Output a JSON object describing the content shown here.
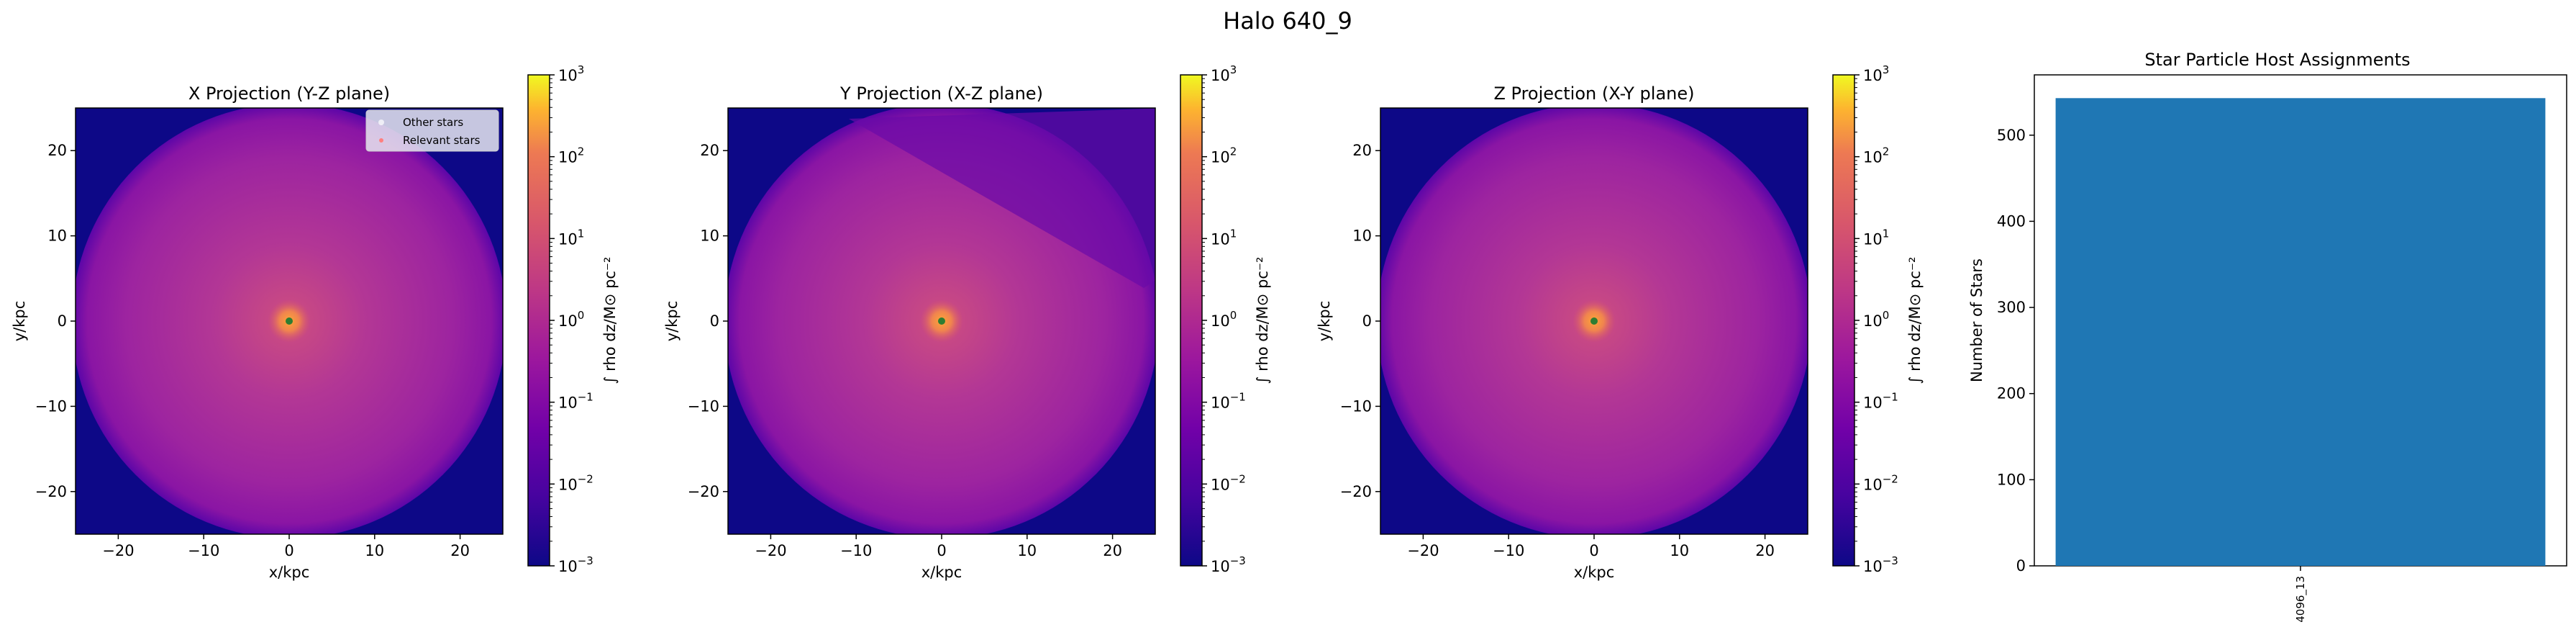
{
  "suptitle": "Halo 640_9",
  "projections": [
    {
      "title": "X Projection (Y-Z plane)",
      "xlabel": "x/kpc",
      "ylabel": "y/kpc",
      "legend": [
        "Other stars",
        "Relevant stars"
      ],
      "colorbar_label": "∫ rho dz/M⊙ pc⁻²"
    },
    {
      "title": "Y Projection (X-Z plane)",
      "xlabel": "x/kpc",
      "ylabel": "y/kpc",
      "colorbar_label": "∫ rho dz/M⊙ pc⁻²"
    },
    {
      "title": "Z Projection (X-Y plane)",
      "xlabel": "x/kpc",
      "ylabel": "y/kpc",
      "colorbar_label": "∫ rho dz/M⊙ pc⁻²"
    }
  ],
  "axis_ticks": [
    "−20",
    "−10",
    "0",
    "10",
    "20"
  ],
  "colorbar_ticks": [
    {
      "base": "10",
      "exp": "3"
    },
    {
      "base": "10",
      "exp": "2"
    },
    {
      "base": "10",
      "exp": "1"
    },
    {
      "base": "10",
      "exp": "0"
    },
    {
      "base": "10",
      "exp": "−1"
    },
    {
      "base": "10",
      "exp": "−2"
    },
    {
      "base": "10",
      "exp": "−3"
    }
  ],
  "colors": {
    "background": "#0d0887",
    "halo_outer": "#8c15a3",
    "halo_mid": "#a5209c",
    "core": "#f0844f",
    "relevant_star": "#2e7d32",
    "bar": "#1f77b4"
  },
  "colormap": "plasma",
  "chart_data": {
    "type": "bar",
    "title": "Star Particle Host Assignments",
    "ylabel": "Number of Stars",
    "categories": [
      "4096_13"
    ],
    "values": [
      543
    ],
    "ylim": [
      0,
      570
    ],
    "yticks": [
      "0",
      "100",
      "200",
      "300",
      "400",
      "500"
    ]
  }
}
